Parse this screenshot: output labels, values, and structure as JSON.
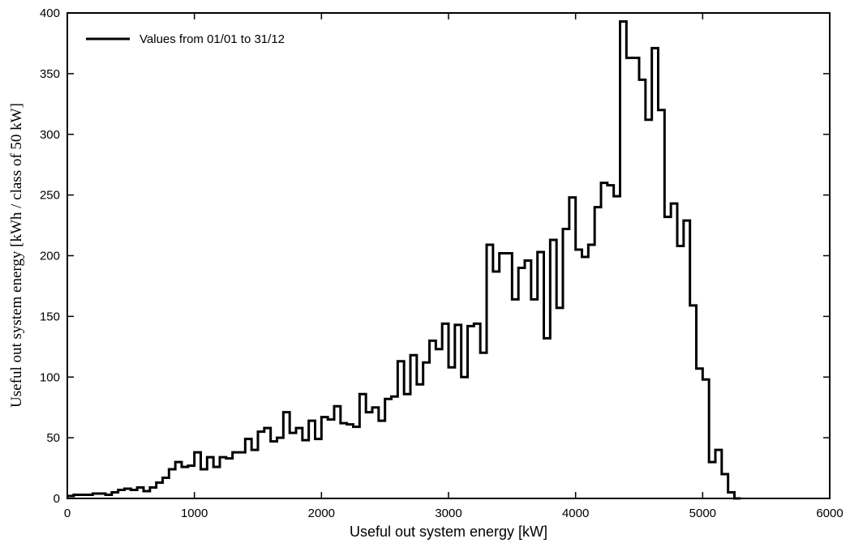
{
  "chart_data": {
    "type": "line",
    "step": true,
    "xlabel": "Useful out system energy [kW]",
    "ylabel": "Useful out system energy  [kWh / class of 50 kW]",
    "xlim": [
      0,
      6000
    ],
    "ylim": [
      0,
      400
    ],
    "xticks": [
      0,
      1000,
      2000,
      3000,
      4000,
      5000,
      6000
    ],
    "yticks": [
      0,
      50,
      100,
      150,
      200,
      250,
      300,
      350,
      400
    ],
    "grid": false,
    "legend_position": "top-left",
    "series": [
      {
        "name": "Values from 01/01 to 31/12",
        "color": "#000000",
        "bin_width": 50,
        "bin_start": 0,
        "values": [
          2,
          3,
          3,
          3,
          4,
          4,
          3,
          5,
          7,
          8,
          7,
          9,
          6,
          9,
          13,
          17,
          24,
          30,
          26,
          27,
          38,
          24,
          34,
          26,
          34,
          33,
          38,
          38,
          49,
          40,
          55,
          58,
          47,
          50,
          71,
          54,
          58,
          48,
          64,
          49,
          67,
          65,
          76,
          62,
          61,
          59,
          86,
          71,
          75,
          64,
          82,
          84,
          113,
          86,
          118,
          94,
          112,
          130,
          123,
          144,
          108,
          143,
          100,
          142,
          144,
          120,
          209,
          187,
          202,
          202,
          164,
          190,
          196,
          164,
          203,
          132,
          213,
          157,
          222,
          248,
          205,
          199,
          209,
          240,
          260,
          258,
          249,
          393,
          363,
          363,
          345,
          312,
          371,
          320,
          232,
          243,
          208,
          229,
          159,
          107,
          98,
          30,
          40,
          20,
          5,
          0
        ]
      }
    ]
  }
}
